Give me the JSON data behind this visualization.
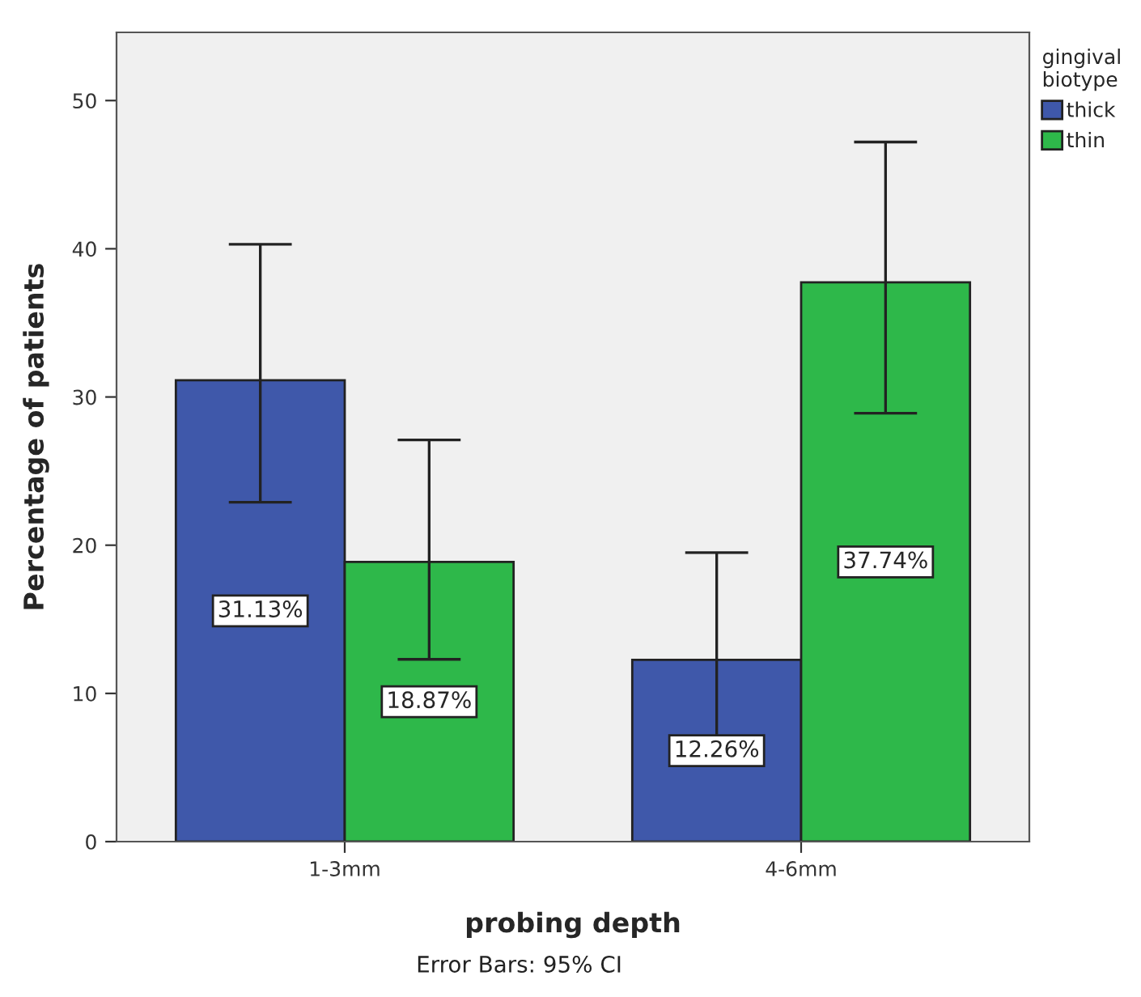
{
  "chart_data": {
    "type": "bar",
    "xlabel": "probing depth",
    "ylabel": "Percentage of patients",
    "legend_title": "gingival\nbiotype",
    "categories": [
      "1-3mm",
      "4-6mm"
    ],
    "series": [
      {
        "name": "thick",
        "color": "#3f58aa",
        "values": [
          31.13,
          12.26
        ],
        "errors": [
          [
            22.9,
            40.3
          ],
          [
            7.1,
            19.5
          ]
        ],
        "value_labels": [
          "31.13%",
          "12.26%"
        ]
      },
      {
        "name": "thin",
        "color": "#2eb84a",
        "values": [
          18.87,
          37.74
        ],
        "errors": [
          [
            12.3,
            27.1
          ],
          [
            28.9,
            47.2
          ]
        ],
        "value_labels": [
          "18.87%",
          "37.74%"
        ]
      }
    ],
    "ylim": [
      0,
      54.6
    ],
    "yticks": [
      0,
      10,
      20,
      30,
      40,
      50
    ],
    "grid": false,
    "legend": "top right",
    "annotations": [
      "Error Bars: 95% CI"
    ]
  }
}
